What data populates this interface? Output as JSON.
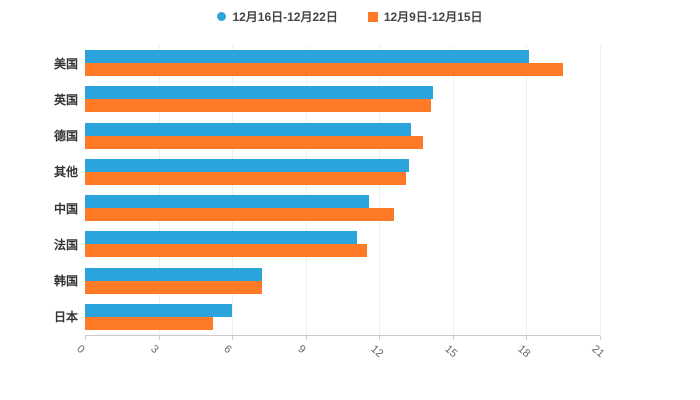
{
  "chart_data": {
    "type": "bar",
    "orientation": "horizontal",
    "title": "",
    "xlabel": "",
    "ylabel": "",
    "categories": [
      "美国",
      "英国",
      "德国",
      "其他",
      "中国",
      "法国",
      "韩国",
      "日本"
    ],
    "series": [
      {
        "name": "12月16日-12月22日",
        "color": "#2BA3DB",
        "marker": "circle-icon",
        "values": [
          18.1,
          14.2,
          13.3,
          13.2,
          11.6,
          11.1,
          7.2,
          6.0
        ]
      },
      {
        "name": "12月9日-12月15日",
        "color": "#FE7A26",
        "marker": "square-icon",
        "values": [
          19.5,
          14.1,
          13.8,
          13.1,
          12.6,
          11.5,
          7.2,
          5.2
        ]
      }
    ],
    "xlim": [
      0,
      21
    ],
    "xticks": [
      0,
      3,
      6,
      9,
      12,
      15,
      18,
      21
    ],
    "legend_position": "top",
    "grid": "faint-vertical",
    "background_color": "#ffffff",
    "axis_line_color": "#cccccc"
  }
}
